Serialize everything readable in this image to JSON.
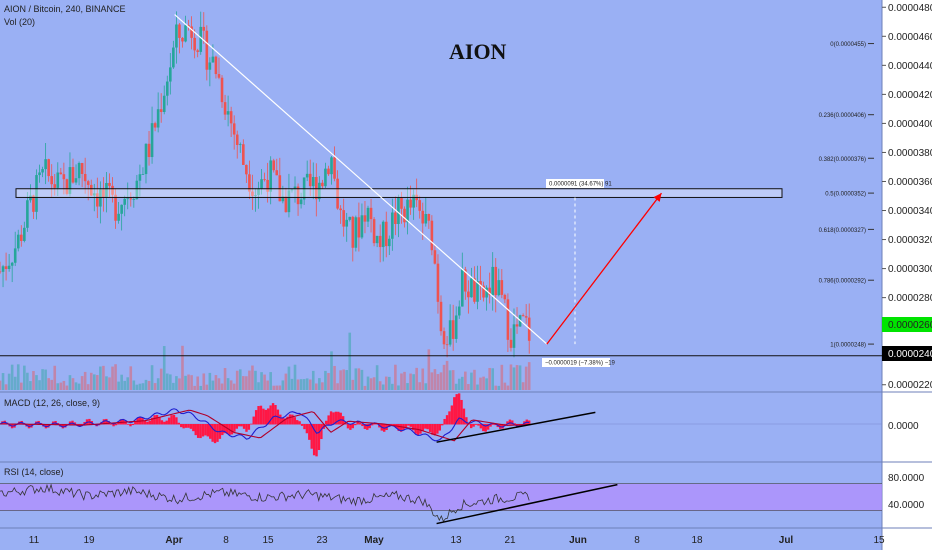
{
  "header": {
    "symbol": "AION / Bitcoin, 240, BINANCE",
    "volume": "Vol (20)",
    "big_title": "AION"
  },
  "colors": {
    "background": "#9ab0f4",
    "axis_bg": "#ffffff",
    "up": "#26a69a",
    "down": "#ef5350",
    "macd": "#1f1fd0",
    "signal": "#b0002a",
    "hist": "#ff1744",
    "rsi": "#333333",
    "rsi_band": "#b388ff",
    "trendline": "#ffffff",
    "projection": "#ff0000",
    "price_label": "#00e400"
  },
  "labels": {
    "current_price": "0.0000260",
    "line_price": "0.0000240",
    "range_upper": "0.0000091 (34.67%) 91",
    "range_lower": "−0.0000019 (−7.38%) −19",
    "macd": "MACD (12, 26, close, 9)",
    "rsi": "RSI (14, close)"
  },
  "chart_data": [
    {
      "type": "candlestick",
      "title": "AION / Bitcoin, 240, BINANCE",
      "x_ticks": [
        "11",
        "19",
        "Apr",
        "8",
        "15",
        "23",
        "May",
        "13",
        "21",
        "Jun",
        "8",
        "18",
        "Jul",
        "15"
      ],
      "y_ticks": [
        "0.0000480",
        "0.0000460",
        "0.0000440",
        "0.0000420",
        "0.0000400",
        "0.0000380",
        "0.0000360",
        "0.0000340",
        "0.0000320",
        "0.0000300",
        "0.0000280",
        "0.0000220"
      ],
      "ylim": [
        2.15e-05,
        4.85e-05
      ],
      "path_points": [
        [
          0,
          2.98e-05
        ],
        [
          0.02,
          3.18e-05
        ],
        [
          0.035,
          3.45e-05
        ],
        [
          0.05,
          3.65e-05
        ],
        [
          0.07,
          3.55e-05
        ],
        [
          0.09,
          3.7e-05
        ],
        [
          0.11,
          3.52e-05
        ],
        [
          0.13,
          3.43e-05
        ],
        [
          0.155,
          3.6e-05
        ],
        [
          0.17,
          3.85e-05
        ],
        [
          0.2,
          4.58e-05
        ],
        [
          0.215,
          4.68e-05
        ],
        [
          0.225,
          4.58e-05
        ],
        [
          0.245,
          4.38e-05
        ],
        [
          0.26,
          4.05e-05
        ],
        [
          0.275,
          3.75e-05
        ],
        [
          0.29,
          3.55e-05
        ],
        [
          0.305,
          3.66e-05
        ],
        [
          0.32,
          3.48e-05
        ],
        [
          0.345,
          3.52e-05
        ],
        [
          0.365,
          3.62e-05
        ],
        [
          0.375,
          3.8e-05
        ],
        [
          0.385,
          3.38e-05
        ],
        [
          0.4,
          3.2e-05
        ],
        [
          0.415,
          3.43e-05
        ],
        [
          0.43,
          3.16e-05
        ],
        [
          0.45,
          3.38e-05
        ],
        [
          0.47,
          3.43e-05
        ],
        [
          0.49,
          3.22e-05
        ],
        [
          0.5,
          2.63e-05
        ],
        [
          0.51,
          2.52e-05
        ],
        [
          0.525,
          2.92e-05
        ],
        [
          0.545,
          2.78e-05
        ],
        [
          0.56,
          2.92e-05
        ],
        [
          0.58,
          2.55e-05
        ],
        [
          0.595,
          2.62e-05
        ],
        [
          0.6,
          2.56e-05
        ]
      ],
      "trendline": [
        [
          0.198,
          4.75e-05
        ],
        [
          0.62,
          2.48e-05
        ]
      ],
      "resistance_zone": [
        3.49e-05,
        3.55e-05
      ],
      "projection": [
        [
          0.62,
          2.48e-05
        ],
        [
          0.75,
          3.52e-05
        ]
      ],
      "fib_levels": [
        {
          "label": "0(0.0000455)",
          "value": 4.55e-05
        },
        {
          "label": "0.236(0.0000406)",
          "value": 4.06e-05
        },
        {
          "label": "0.382(0.0000376)",
          "value": 3.76e-05
        },
        {
          "label": "0.5(0.0000352)",
          "value": 3.52e-05
        },
        {
          "label": "0.618(0.0000327)",
          "value": 3.27e-05
        },
        {
          "label": "0.786(0.0000292)",
          "value": 2.92e-05
        },
        {
          "label": "1(0.0000248)",
          "value": 2.48e-05
        }
      ]
    },
    {
      "type": "line",
      "title": "MACD (12, 26, close, 9)",
      "y_ticks": [
        "0.0000"
      ],
      "path_points": [
        [
          0,
          0
        ],
        [
          0.08,
          -0.04
        ],
        [
          0.15,
          0.12
        ],
        [
          0.2,
          0.5
        ],
        [
          0.22,
          0.3
        ],
        [
          0.25,
          -0.3
        ],
        [
          0.28,
          -0.5
        ],
        [
          0.31,
          0.2
        ],
        [
          0.34,
          0.45
        ],
        [
          0.36,
          -0.3
        ],
        [
          0.38,
          0.1
        ],
        [
          0.42,
          0.0
        ],
        [
          0.46,
          -0.2
        ],
        [
          0.5,
          -0.6
        ],
        [
          0.52,
          0.15
        ],
        [
          0.56,
          -0.05
        ],
        [
          0.6,
          0.0
        ]
      ],
      "trendline": [
        [
          0.495,
          -0.65
        ],
        [
          0.675,
          0.2
        ]
      ]
    },
    {
      "type": "line",
      "title": "RSI (14, close)",
      "y_ticks": [
        "80.0000",
        "40.0000"
      ],
      "ylim": [
        15,
        90
      ],
      "band": [
        34,
        67
      ],
      "path_points": [
        [
          0,
          55
        ],
        [
          0.05,
          62
        ],
        [
          0.1,
          52
        ],
        [
          0.15,
          58
        ],
        [
          0.2,
          48
        ],
        [
          0.25,
          56
        ],
        [
          0.3,
          50
        ],
        [
          0.35,
          54
        ],
        [
          0.4,
          46
        ],
        [
          0.45,
          52
        ],
        [
          0.48,
          46
        ],
        [
          0.5,
          22
        ],
        [
          0.52,
          40
        ],
        [
          0.56,
          48
        ],
        [
          0.6,
          52
        ]
      ],
      "trendline": [
        [
          0.495,
          18
        ],
        [
          0.7,
          56
        ]
      ]
    }
  ]
}
